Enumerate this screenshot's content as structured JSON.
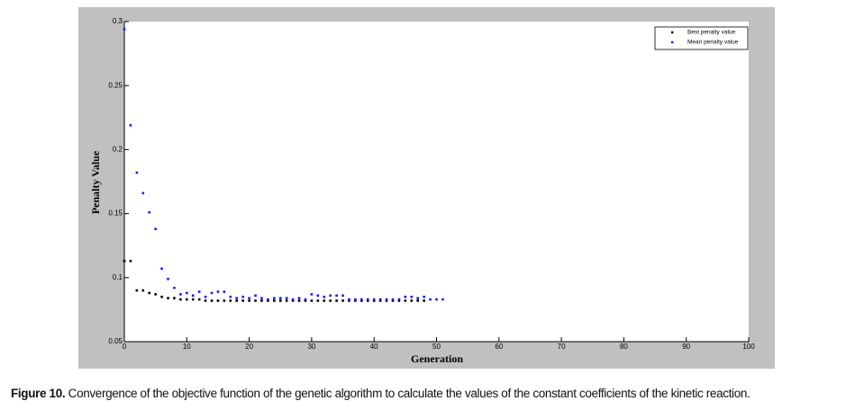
{
  "chart_data": {
    "type": "scatter",
    "x_label": "Generation",
    "y_label": "Penalty Value",
    "xlim": [
      0,
      100
    ],
    "xticks": [
      0,
      10,
      20,
      30,
      40,
      50,
      60,
      70,
      80,
      90,
      100
    ],
    "ylim": [
      0.05,
      0.3
    ],
    "yticks": [
      0.05,
      0.1,
      0.15,
      0.2,
      0.25,
      0.3
    ],
    "legend": "upper right",
    "series": [
      {
        "name": "Best penalty value",
        "color": "#000000",
        "x": [
          0,
          1,
          2,
          3,
          4,
          5,
          6,
          7,
          8,
          9,
          10,
          11,
          12,
          13,
          14,
          15,
          16,
          17,
          18,
          19,
          20,
          21,
          22,
          23,
          24,
          25,
          26,
          27,
          28,
          29,
          30,
          31,
          32,
          33,
          34,
          35,
          36,
          37,
          38,
          39,
          40,
          41,
          42,
          43,
          44,
          45,
          46,
          47,
          48
        ],
        "values": [
          0.113,
          0.113,
          0.09,
          0.09,
          0.088,
          0.087,
          0.085,
          0.084,
          0.084,
          0.083,
          0.083,
          0.083,
          0.083,
          0.082,
          0.082,
          0.082,
          0.082,
          0.082,
          0.082,
          0.082,
          0.082,
          0.082,
          0.082,
          0.082,
          0.082,
          0.082,
          0.082,
          0.082,
          0.082,
          0.082,
          0.082,
          0.082,
          0.082,
          0.082,
          0.082,
          0.082,
          0.082,
          0.082,
          0.082,
          0.082,
          0.082,
          0.082,
          0.082,
          0.082,
          0.082,
          0.082,
          0.082,
          0.082,
          0.082
        ]
      },
      {
        "name": "Mean penalty value",
        "color": "#1a1aff",
        "x": [
          0,
          1,
          2,
          3,
          4,
          5,
          6,
          7,
          8,
          9,
          10,
          11,
          12,
          13,
          14,
          15,
          16,
          17,
          18,
          19,
          20,
          21,
          22,
          23,
          24,
          25,
          26,
          27,
          28,
          29,
          30,
          31,
          32,
          33,
          34,
          35,
          36,
          37,
          38,
          39,
          40,
          41,
          42,
          43,
          44,
          45,
          46,
          47,
          48,
          49,
          50,
          51
        ],
        "values": [
          0.294,
          0.219,
          0.182,
          0.166,
          0.151,
          0.138,
          0.107,
          0.099,
          0.092,
          0.087,
          0.088,
          0.086,
          0.089,
          0.085,
          0.088,
          0.089,
          0.089,
          0.085,
          0.084,
          0.085,
          0.084,
          0.086,
          0.084,
          0.083,
          0.084,
          0.084,
          0.084,
          0.083,
          0.084,
          0.083,
          0.087,
          0.086,
          0.085,
          0.086,
          0.086,
          0.086,
          0.083,
          0.083,
          0.083,
          0.083,
          0.083,
          0.083,
          0.083,
          0.083,
          0.083,
          0.085,
          0.085,
          0.084,
          0.085,
          0.083,
          0.083,
          0.083
        ]
      }
    ]
  },
  "figure": {
    "label": "Figure 10.",
    "caption": " Convergence of the objective function of the genetic algorithm to calculate the values of the constant coefficients of the kinetic reaction."
  }
}
